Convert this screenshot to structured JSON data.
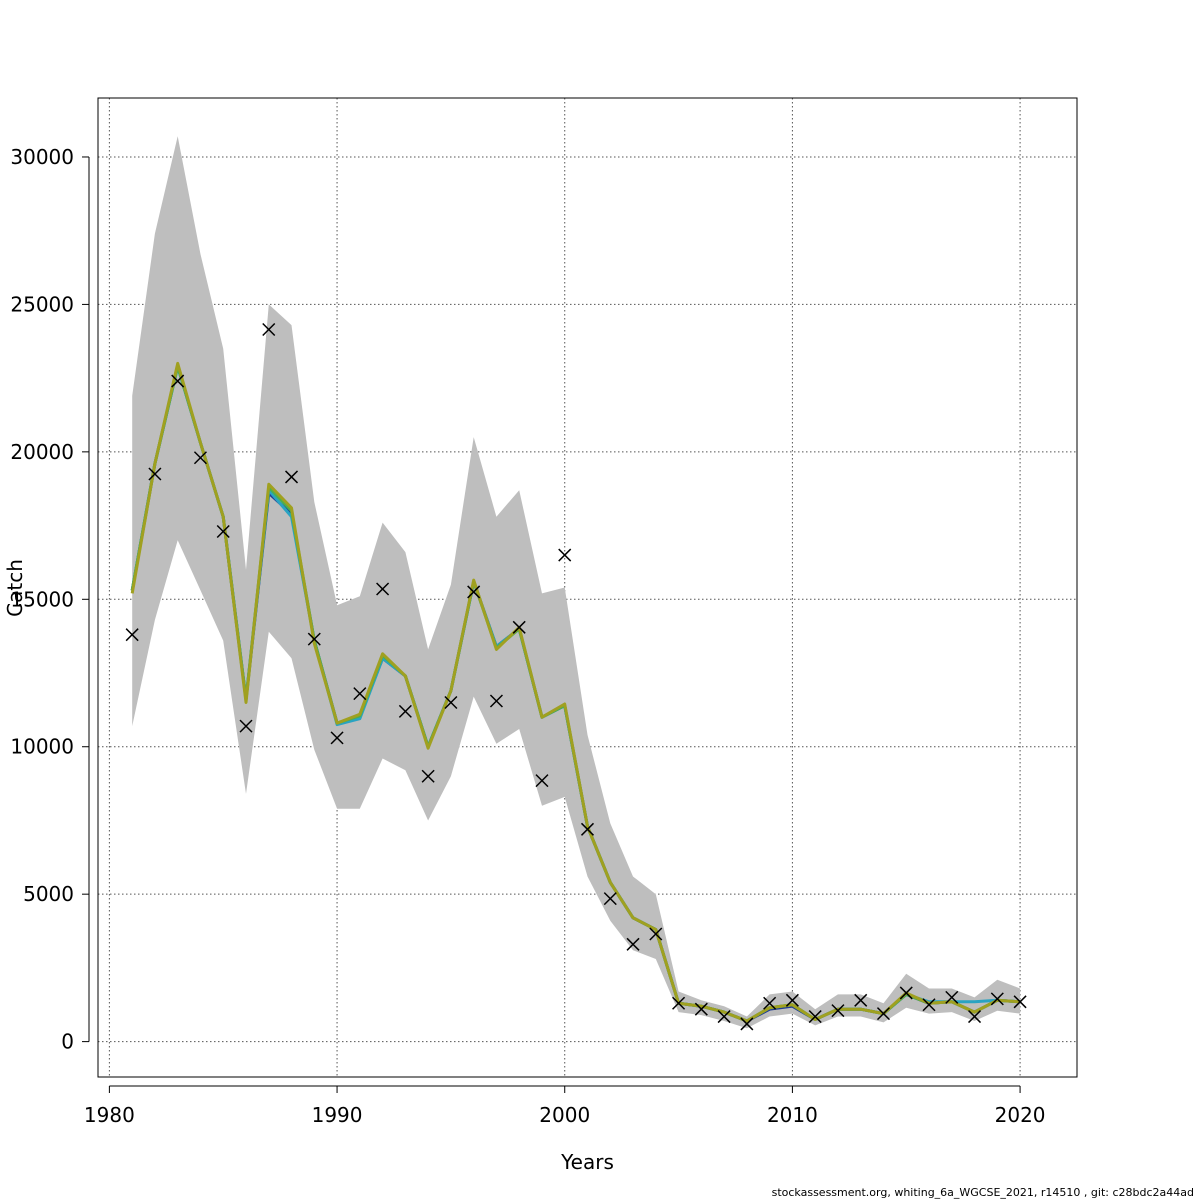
{
  "chart_data": {
    "type": "line",
    "title": "",
    "xlabel": "Years",
    "ylabel": "Catch",
    "xlim": [
      1979.5,
      2022.5
    ],
    "ylim": [
      -1200,
      32000
    ],
    "x_ticks": [
      1980,
      1990,
      2000,
      2010,
      2020
    ],
    "y_ticks": [
      0,
      5000,
      10000,
      15000,
      20000,
      25000,
      30000
    ],
    "grid": true,
    "legend": "none",
    "colors": {
      "band": "#bebebe",
      "grid": "#555555",
      "observed_marker": "#000000",
      "series": [
        "#1f3a93",
        "#2aa3c2",
        "#4caf50",
        "#a0a020"
      ]
    },
    "years": [
      1981,
      1982,
      1983,
      1984,
      1985,
      1986,
      1987,
      1988,
      1989,
      1990,
      1991,
      1992,
      1993,
      1994,
      1995,
      1996,
      1997,
      1998,
      1999,
      2000,
      2001,
      2002,
      2003,
      2004,
      2005,
      2006,
      2007,
      2008,
      2009,
      2010,
      2011,
      2012,
      2013,
      2014,
      2015,
      2016,
      2017,
      2018,
      2019,
      2020
    ],
    "observed": [
      13800,
      19250,
      22400,
      19800,
      17300,
      10700,
      24150,
      19150,
      13650,
      10300,
      11800,
      15350,
      11200,
      9000,
      11500,
      15250,
      11550,
      14050,
      8850,
      16500,
      7200,
      4850,
      3300,
      3650,
      1300,
      1100,
      850,
      600,
      1300,
      1400,
      850,
      1050,
      1400,
      950,
      1650,
      1250,
      1500,
      850,
      1450,
      1350
    ],
    "ci_upper": [
      21900,
      27400,
      30700,
      26700,
      23500,
      16000,
      25000,
      24300,
      18300,
      14800,
      15100,
      17600,
      16600,
      13300,
      15500,
      20500,
      17800,
      18700,
      15200,
      15400,
      10400,
      7400,
      5600,
      5000,
      1700,
      1400,
      1200,
      850,
      1600,
      1700,
      1100,
      1600,
      1600,
      1300,
      2300,
      1800,
      1800,
      1500,
      2100,
      1800
    ],
    "ci_lower": [
      10700,
      14300,
      17000,
      15300,
      13600,
      8400,
      13900,
      13000,
      9900,
      7900,
      7900,
      9600,
      9200,
      7500,
      9000,
      11700,
      10100,
      10600,
      8000,
      8300,
      5600,
      4100,
      3100,
      2800,
      1000,
      900,
      700,
      450,
      850,
      950,
      550,
      850,
      850,
      650,
      1150,
      950,
      1000,
      700,
      1050,
      950
    ],
    "series": [
      {
        "values": [
          15300,
          19600,
          22900,
          20300,
          17800,
          11600,
          18600,
          17900,
          13600,
          10800,
          11000,
          13000,
          12400,
          10000,
          11900,
          15600,
          13400,
          14000,
          11000,
          11400,
          7300,
          5400,
          4200,
          3800,
          1300,
          1200,
          1000,
          700,
          1100,
          1200,
          750,
          1100,
          1100,
          950,
          1600,
          1300,
          1350,
          1000,
          1400,
          1350
        ]
      },
      {
        "values": [
          15300,
          19600,
          22900,
          20300,
          17800,
          11600,
          18700,
          17800,
          13600,
          10750,
          10950,
          13000,
          12400,
          10000,
          11900,
          15600,
          13400,
          14000,
          11000,
          11400,
          7300,
          5400,
          4200,
          3800,
          1300,
          1200,
          1000,
          700,
          1150,
          1250,
          750,
          1100,
          1100,
          950,
          1600,
          1350,
          1350,
          1350,
          1400,
          1350
        ]
      },
      {
        "values": [
          15300,
          19600,
          22900,
          20300,
          17800,
          11600,
          18800,
          18000,
          13600,
          10800,
          11050,
          13100,
          12400,
          10000,
          11900,
          15600,
          13350,
          14000,
          11000,
          11400,
          7300,
          5400,
          4200,
          3800,
          1300,
          1200,
          1000,
          700,
          1150,
          1250,
          750,
          1100,
          1100,
          950,
          1600,
          1300,
          1350,
          1000,
          1400,
          1350
        ]
      },
      {
        "values": [
          15200,
          19600,
          23000,
          20300,
          17800,
          11500,
          18900,
          18100,
          13500,
          10800,
          11100,
          13150,
          12400,
          9950,
          11900,
          15650,
          13300,
          14050,
          11000,
          11450,
          7300,
          5400,
          4200,
          3800,
          1300,
          1200,
          1000,
          700,
          1150,
          1250,
          750,
          1100,
          1100,
          950,
          1650,
          1300,
          1350,
          1000,
          1400,
          1350
        ]
      }
    ]
  },
  "footer": "stockassessment.org, whiting_6a_WGCSE_2021, r14510 , git: c28bdc2a44ad"
}
